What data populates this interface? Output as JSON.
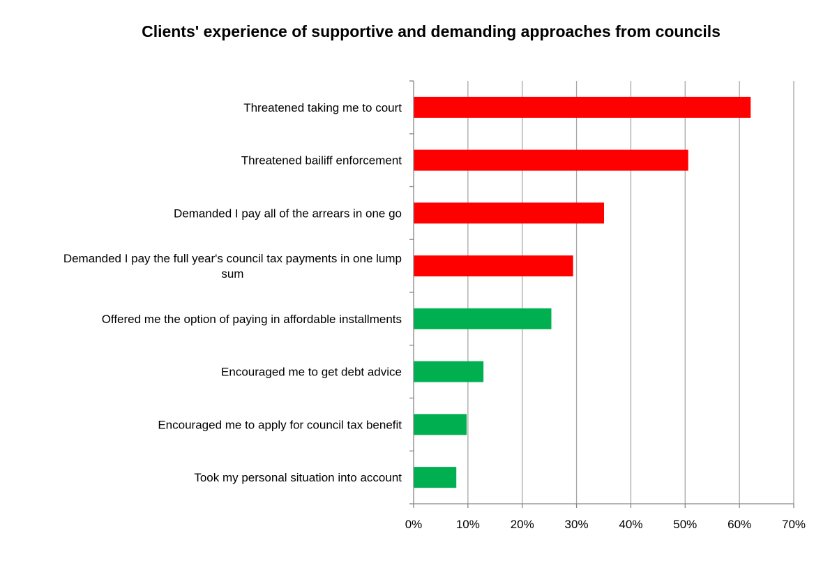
{
  "chart_data": {
    "type": "bar",
    "orientation": "horizontal",
    "title": "Clients' experience of supportive and demanding approaches from councils",
    "xlabel": "",
    "ylabel": "",
    "xlim": [
      0,
      70
    ],
    "x_ticks": [
      "0%",
      "10%",
      "20%",
      "30%",
      "40%",
      "50%",
      "60%",
      "70%"
    ],
    "grid": "vertical",
    "legend": "none",
    "categories": [
      "Threatened taking me to court",
      "Threatened bailiff enforcement",
      "Demanded I pay all of the arrears in one go",
      "Demanded I pay the full year's council tax payments in one lump sum",
      "Offered me the option of paying in affordable installments",
      "Encouraged me to get debt advice",
      "Encouraged me to apply for council tax benefit",
      "Took my personal situation into account"
    ],
    "values": [
      62,
      50.5,
      35,
      29.3,
      25.3,
      12.8,
      9.7,
      7.8
    ],
    "bar_colors": [
      "#ff0000",
      "#ff0000",
      "#ff0000",
      "#ff0000",
      "#00b050",
      "#00b050",
      "#00b050",
      "#00b050"
    ]
  },
  "colors": {
    "demanding": "#ff0000",
    "supportive": "#00b050",
    "gridline": "#a6a6a6",
    "axis": "#868686"
  }
}
